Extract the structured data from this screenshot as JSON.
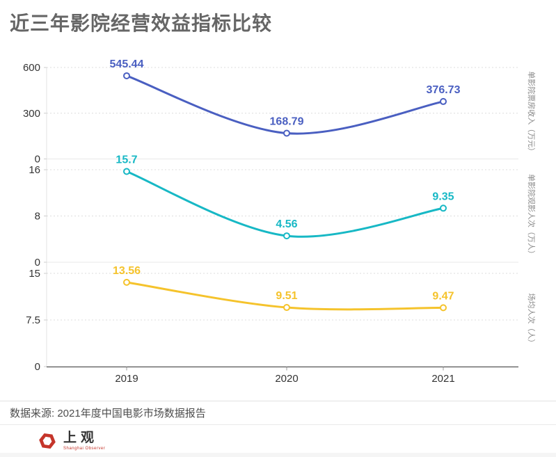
{
  "title": "近三年影院经营效益指标比较",
  "source_note": "数据来源: 2021年度中国电影市场数据报告",
  "logo": {
    "name": "上观",
    "subtitle": "Shanghai Observer",
    "color": "#c5352b"
  },
  "chart_data": {
    "type": "line",
    "categories": [
      "2019",
      "2020",
      "2021"
    ],
    "grid": "dotted-horizontal",
    "legend": "none",
    "axis_color": "#333333",
    "panels": [
      {
        "name": "单影院票房收入（万元）",
        "color": "#4a5fc1",
        "values": [
          545.44,
          168.79,
          376.73
        ],
        "labels": [
          "545.44",
          "168.79",
          "376.73"
        ],
        "ymax": 600,
        "yticks": [
          600,
          300,
          0
        ]
      },
      {
        "name": "单影院观影人次（万人）",
        "color": "#17b8c5",
        "values": [
          15.7,
          4.56,
          9.35
        ],
        "labels": [
          "15.7",
          "4.56",
          "9.35"
        ],
        "ymax": 16,
        "yticks": [
          16,
          8,
          0
        ]
      },
      {
        "name": "场均人次（人）",
        "color": "#f5c32c",
        "values": [
          13.56,
          9.51,
          9.47
        ],
        "labels": [
          "13.56",
          "9.51",
          "9.47"
        ],
        "ymax": 15,
        "yticks": [
          15,
          7.5,
          0
        ]
      }
    ]
  }
}
